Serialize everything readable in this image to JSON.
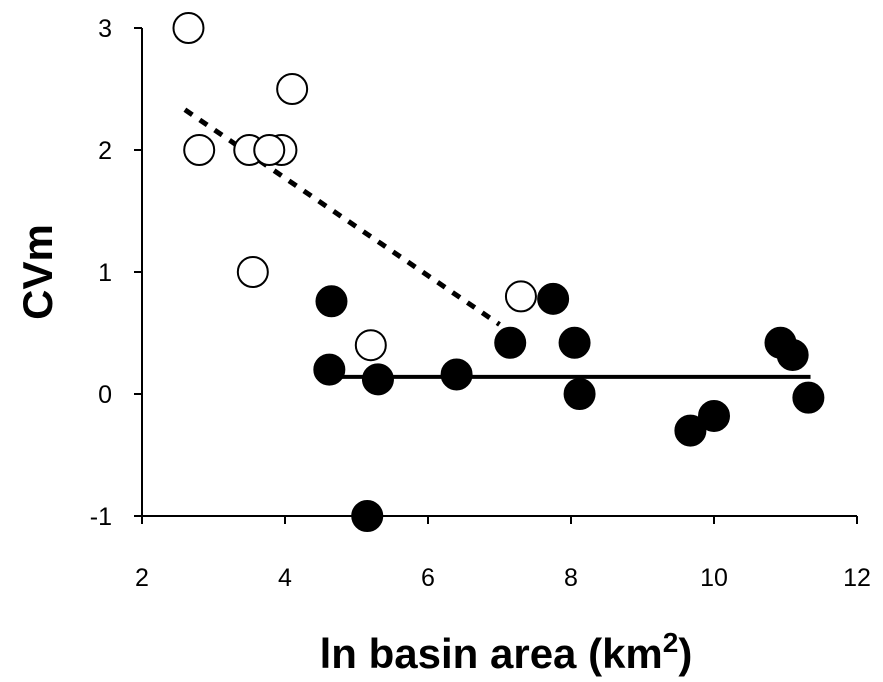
{
  "chart_data": {
    "type": "scatter",
    "title": "",
    "xlabel_main": "ln basin area (km",
    "xlabel_sup": "2",
    "xlabel_close": ")",
    "ylabel": "CVm",
    "xlim": [
      2,
      12
    ],
    "ylim": [
      -1,
      3
    ],
    "x_ticks": [
      2,
      4,
      6,
      8,
      10,
      12
    ],
    "y_ticks": [
      -1,
      0,
      1,
      2,
      3
    ],
    "legend": "none",
    "grid": false,
    "series": [
      {
        "marker": "open-circle",
        "color": "#000000",
        "points": [
          {
            "x": 2.65,
            "y": 3.0
          },
          {
            "x": 2.8,
            "y": 2.0
          },
          {
            "x": 3.5,
            "y": 2.0
          },
          {
            "x": 3.55,
            "y": 1.0
          },
          {
            "x": 3.95,
            "y": 2.0
          },
          {
            "x": 3.78,
            "y": 2.0
          },
          {
            "x": 4.1,
            "y": 2.5
          },
          {
            "x": 5.2,
            "y": 0.4
          },
          {
            "x": 7.3,
            "y": 0.8
          }
        ],
        "trendline": {
          "style": "dotted",
          "from": {
            "x": 2.6,
            "y": 2.33
          },
          "to": {
            "x": 7.0,
            "y": 0.57
          }
        }
      },
      {
        "marker": "filled-circle",
        "color": "#000000",
        "points": [
          {
            "x": 4.65,
            "y": 0.76
          },
          {
            "x": 4.62,
            "y": 0.2
          },
          {
            "x": 5.3,
            "y": 0.12
          },
          {
            "x": 5.15,
            "y": -1.0
          },
          {
            "x": 6.4,
            "y": 0.16
          },
          {
            "x": 7.15,
            "y": 0.42
          },
          {
            "x": 7.75,
            "y": 0.78
          },
          {
            "x": 8.05,
            "y": 0.42
          },
          {
            "x": 8.12,
            "y": 0.0
          },
          {
            "x": 9.67,
            "y": -0.3
          },
          {
            "x": 10.0,
            "y": -0.18
          },
          {
            "x": 10.93,
            "y": 0.42
          },
          {
            "x": 11.1,
            "y": 0.32
          },
          {
            "x": 11.32,
            "y": -0.03
          }
        ],
        "trendline": {
          "style": "solid",
          "from": {
            "x": 4.6,
            "y": 0.14
          },
          "to": {
            "x": 11.35,
            "y": 0.14
          }
        }
      }
    ]
  }
}
